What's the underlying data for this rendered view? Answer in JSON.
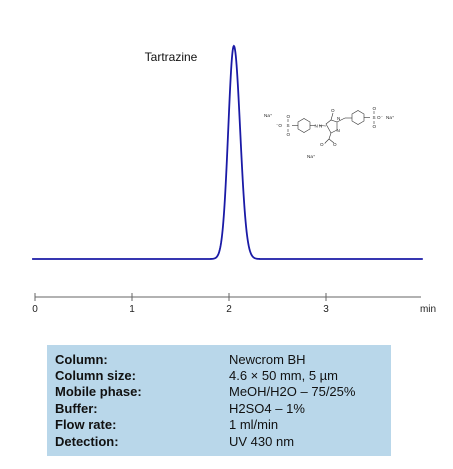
{
  "chart_data": {
    "type": "line",
    "x_ticks": [
      0,
      1,
      2,
      3
    ],
    "x_unit": "min",
    "xlim": [
      0,
      4.05
    ],
    "peaks": [
      {
        "name": "Tartrazine",
        "retention_time": 2.05,
        "height": 1.0
      }
    ]
  },
  "structure": {
    "labels": {
      "na1": "Na⁺",
      "na2": "Na⁺",
      "na3": "Na⁺",
      "o_left": "⁻O",
      "s_left": "S",
      "o_right": "O⁻",
      "s_right": "S",
      "o_carb": "O",
      "o_carb2": "O⁻",
      "n1": "N",
      "n2": "N",
      "n3": "N",
      "n4": "N",
      "o_ring": "O",
      "o_top_l": "O",
      "o_bot_l": "O",
      "o_top_r": "O",
      "o_bot_r": "O"
    }
  },
  "conditions": {
    "rows": [
      {
        "key": "Column:",
        "value": "Newcrom BH"
      },
      {
        "key": "Column size:",
        "value": "4.6 × 50 mm, 5 µm"
      },
      {
        "key": "Mobile phase:",
        "value": "MeOH/H2O – 75/25%"
      },
      {
        "key": "Buffer:",
        "value": "H2SO4  –  1%"
      },
      {
        "key": "Flow rate:",
        "value": "1 ml/min"
      },
      {
        "key": "Detection:",
        "value": "UV  430 nm"
      }
    ]
  },
  "colors": {
    "trace": "#1a1aa6",
    "axis": "#666666",
    "box": "#b9d7ea"
  }
}
